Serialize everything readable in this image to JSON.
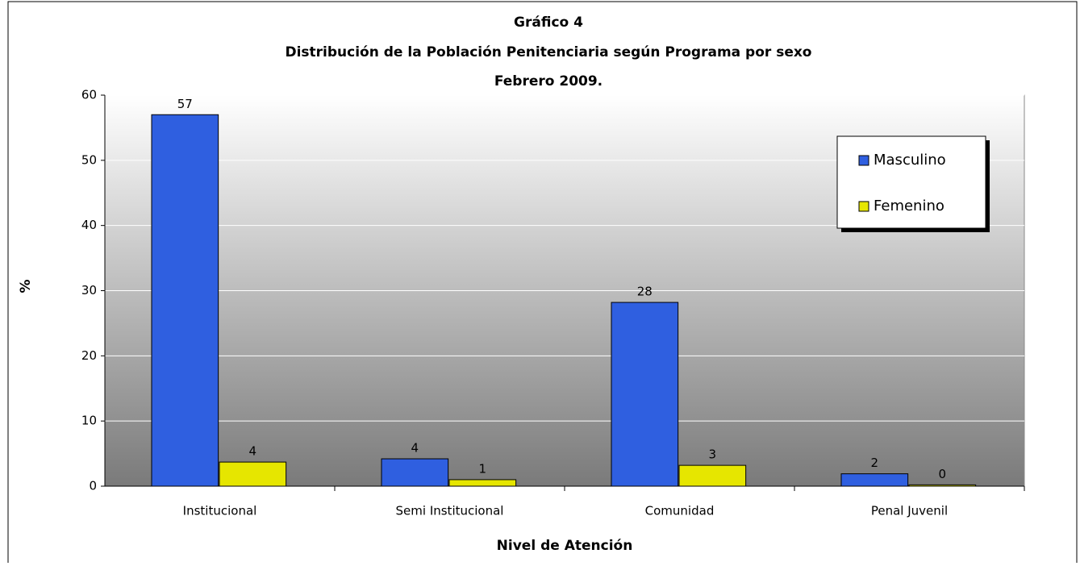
{
  "chart_data": {
    "type": "bar",
    "title": "Gráfico 4",
    "subtitle": "Distribución de la Población Penitenciaria según Programa por sexo",
    "subtitle2": "Febrero 2009.",
    "ylabel": "%",
    "xlabel": "Nivel de Atención",
    "categories": [
      "Institucional",
      "Semi Institucional",
      "Comunidad",
      "Penal Juvenil"
    ],
    "series": [
      {
        "name": "Masculino",
        "color": "#2f5fe0",
        "values": [
          57.0,
          4.2,
          28.2,
          1.9
        ],
        "value_labels": [
          "57",
          "4",
          "28",
          "2"
        ]
      },
      {
        "name": "Femenino",
        "color": "#e6e600",
        "values": [
          3.7,
          1.0,
          3.2,
          0.2
        ],
        "value_labels": [
          "4",
          "1",
          "3",
          "0"
        ]
      }
    ],
    "ylim": [
      0,
      60
    ],
    "yticks": [
      0,
      10,
      20,
      30,
      40,
      50,
      60
    ],
    "grid": true,
    "legend": "upper right"
  }
}
